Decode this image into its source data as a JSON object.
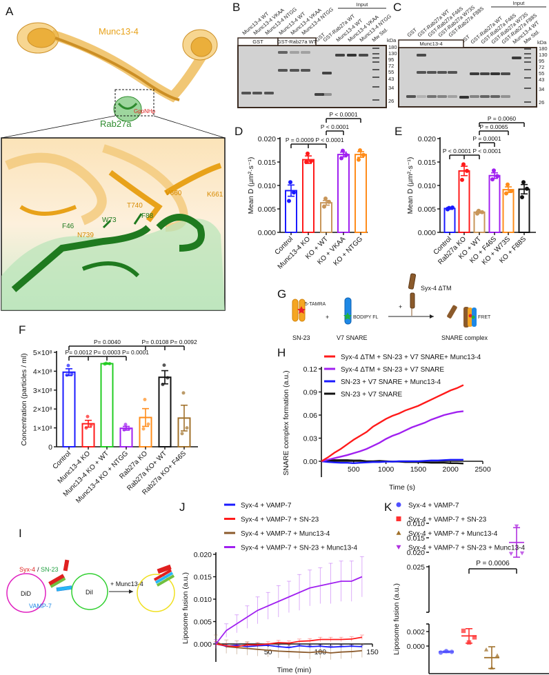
{
  "panel_letters": {
    "a": "A",
    "b": "B",
    "c": "C",
    "d": "D",
    "e": "E",
    "f": "F",
    "g": "G",
    "h": "H",
    "i": "I",
    "j": "J",
    "k": "K"
  },
  "panel_a": {
    "protein_label": "Munc13-4",
    "rab_label": "Rab27a",
    "ligand_label": "GppNHp",
    "residues": [
      "V660",
      "K661",
      "T740",
      "N739",
      "F46",
      "W73",
      "F88"
    ],
    "colors": {
      "munc": "#e8a21a",
      "rab": "#2e8b2e",
      "ligand": "#e02020"
    }
  },
  "panel_b": {
    "lanes": [
      "Munc13-4 WT",
      "Munc13-4 VKAA",
      "Munc13-4 NTGG",
      "Munc13-4 WT",
      "Munc13-4 VKAA",
      "Munc13-4 NTGG",
      "GST",
      "GST-Rab27a WT",
      "Munc13-4 WT",
      "Munc13-4 VKAA",
      "Munc13-4 NTGG",
      "Mw Std."
    ],
    "boxes": [
      "GST",
      "GST-Rab27a WT"
    ],
    "input_label": "Input",
    "kda_label": "kDa",
    "markers": [
      "180",
      "130",
      "95",
      "72",
      "55",
      "43",
      "34",
      "26"
    ]
  },
  "panel_c": {
    "lanes": [
      "GST",
      "GST-Rab27a WT",
      "GST-Rab27a F46S",
      "GST-Rab27a W73S",
      "GST-Rab27a F88S",
      "GST",
      "GST-Rab27a WT",
      "GST-Rab27a F46S",
      "GST-Rab27a W73S",
      "GST-Rab27a F88S",
      "Munc13-4 WT",
      "Mw Std."
    ],
    "box": "Munc13-4",
    "input_label": "Input",
    "kda_label": "kDa",
    "markers": [
      "180",
      "130",
      "95",
      "72",
      "55",
      "43",
      "34",
      "26"
    ]
  },
  "panel_g": {
    "sn23": "SN-23",
    "dye1": "5-TAMRA",
    "v7": "V7 SNARE",
    "dye2": "BODIPY FL",
    "syx": "Syx-4 ΔTM",
    "plus": "+",
    "product": "SNARE complex",
    "fret": "FRET"
  },
  "panel_i": {
    "syx": "Syx-4",
    "slash": "/",
    "sn23": "SN-23",
    "vamp": "VAMP-7",
    "did": "DiD",
    "dii": "DiI",
    "munc": "+ Munc13-4"
  },
  "chart_data": [
    {
      "id": "D",
      "type": "bar",
      "ylabel": "Mean D (µm²·s⁻¹)",
      "ylim": [
        0,
        0.02
      ],
      "yticks": [
        0,
        0.005,
        0.01,
        0.015,
        0.02
      ],
      "ytick_labels": [
        "0.000",
        "0.005",
        "0.010",
        "0.015",
        "0.020"
      ],
      "categories": [
        "Control",
        "Munc13-4 KO",
        "KO + WT",
        "KO + VKAA",
        "KO + NTGG"
      ],
      "colors": [
        "#1a1aff",
        "#ff1a1a",
        "#c8965a",
        "#a020f0",
        "#ff8c1a"
      ],
      "values": [
        0.0089,
        0.0155,
        0.0063,
        0.0166,
        0.0166
      ],
      "errors": [
        0.0012,
        0.0008,
        0.0005,
        0.0005,
        0.0006
      ],
      "points": [
        [
          0.0107,
          0.0085,
          0.0067
        ],
        [
          0.0168,
          0.0152,
          0.015
        ],
        [
          0.0072,
          0.0065,
          0.0055
        ],
        [
          0.0174,
          0.0165,
          0.0158
        ],
        [
          0.0175,
          0.0165,
          0.0155
        ]
      ],
      "comparisons": [
        {
          "groups": [
            0,
            1,
            2
          ],
          "labels": [
            "P = 0.0009",
            "P < 0.0001"
          ]
        },
        {
          "groups": [
            2,
            3
          ],
          "labels": [
            "P < 0.0001"
          ]
        },
        {
          "groups": [
            2,
            4
          ],
          "labels": [
            "P < 0.0001"
          ]
        }
      ]
    },
    {
      "id": "E",
      "type": "bar",
      "ylabel": "Mean D (µm²·s⁻¹)",
      "ylim": [
        0,
        0.02
      ],
      "yticks": [
        0,
        0.005,
        0.01,
        0.015,
        0.02
      ],
      "ytick_labels": [
        "0.000",
        "0.005",
        "0.010",
        "0.015",
        "0.020"
      ],
      "categories": [
        "Control",
        "Rab27a KO",
        "KO + WT",
        "KO + F46S",
        "KO + W73S",
        "KO + F88S"
      ],
      "colors": [
        "#1a1aff",
        "#ff1a1a",
        "#c8965a",
        "#a020f0",
        "#ff8c1a",
        "#111111"
      ],
      "values": [
        0.0051,
        0.0131,
        0.0043,
        0.0121,
        0.0091,
        0.0092
      ],
      "errors": [
        0.0002,
        0.001,
        0.0002,
        0.0006,
        0.0006,
        0.001
      ],
      "points": [
        [
          0.0052,
          0.0053,
          0.0049
        ],
        [
          0.0145,
          0.0131,
          0.0112
        ],
        [
          0.0046,
          0.0043,
          0.004
        ],
        [
          0.0132,
          0.012,
          0.0113
        ],
        [
          0.0102,
          0.0088,
          0.0083
        ],
        [
          0.0107,
          0.0093,
          0.0075
        ]
      ],
      "comparisons": [
        {
          "groups": [
            0,
            1,
            2
          ],
          "labels": [
            "P < 0.0001",
            "P < 0.0001"
          ]
        },
        {
          "groups": [
            2,
            3
          ],
          "labels": [
            "P = 0.0001"
          ]
        },
        {
          "groups": [
            2,
            4
          ],
          "labels": [
            "P = 0.0065"
          ]
        },
        {
          "groups": [
            2,
            5
          ],
          "labels": [
            "P = 0.0060"
          ]
        }
      ]
    },
    {
      "id": "F",
      "type": "bar",
      "ylabel": "Concentration (particles / ml)",
      "ylim": [
        0,
        500000000
      ],
      "yticks": [
        0,
        100000000,
        200000000,
        300000000,
        400000000,
        500000000
      ],
      "ytick_labels": [
        "0",
        "1×10⁸",
        "2×10⁸",
        "3×10⁸",
        "4×10⁸",
        "5×10⁸"
      ],
      "categories": [
        "Control",
        "Munc13-4 KO",
        "Munc13-4 KO + WT",
        "Munc13-4 KO + NTGG",
        "Rab27a KO",
        "Rab27a KO+ WT",
        "Rab27a KO+ F46S"
      ],
      "colors": [
        "#1a1aff",
        "#ff1a1a",
        "#22cc22",
        "#a020f0",
        "#ff8c1a",
        "#111111",
        "#a0702a"
      ],
      "values": [
        395000000,
        122000000,
        440000000,
        98000000,
        155000000,
        368000000,
        152000000
      ],
      "errors": [
        18000000,
        18000000,
        3000000,
        10000000,
        47000000,
        35000000,
        68000000
      ],
      "points": [
        [
          430000000,
          385000000,
          380000000
        ],
        [
          160000000,
          115000000,
          100000000
        ],
        [
          442000000,
          440000000,
          438000000
        ],
        [
          118000000,
          95000000,
          90000000
        ],
        [
          250000000,
          120000000,
          95000000
        ],
        [
          432000000,
          365000000,
          330000000
        ],
        [
          285000000,
          100000000,
          70000000
        ]
      ],
      "comparisons": [
        {
          "groups": [
            0,
            1,
            2,
            3
          ],
          "labels": [
            "P= 0.0012",
            "P= 0.0003",
            "P= 0.0001"
          ]
        },
        {
          "groups": [
            0,
            4,
            5,
            6
          ],
          "labels": [
            "P= 0.0040",
            "P= 0.0108",
            "P= 0.0092"
          ]
        }
      ]
    },
    {
      "id": "H",
      "type": "line",
      "xlabel": "Time (s)",
      "ylabel": "SNARE complex formation (a.u.)",
      "xlim": [
        0,
        2500
      ],
      "ylim": [
        0,
        0.12
      ],
      "xticks": [
        500,
        1000,
        1500,
        2000,
        2500
      ],
      "xtick_labels": [
        "500",
        "1000",
        "1500",
        "2000",
        "2500"
      ],
      "yticks": [
        0,
        0.03,
        0.06,
        0.09,
        0.12
      ],
      "ytick_labels": [
        "0.00",
        "0.03",
        "0.06",
        "0.09",
        "0.12"
      ],
      "x": [
        0,
        100,
        200,
        300,
        400,
        500,
        600,
        700,
        800,
        900,
        1000,
        1100,
        1200,
        1300,
        1400,
        1500,
        1600,
        1700,
        1800,
        1900,
        2000,
        2100,
        2200
      ],
      "series": [
        {
          "name": "Syx-4 ΔTM + SN-23 + V7 SNARE+ Munc13-4",
          "color": "#ff1a1a",
          "values": [
            0,
            0.005,
            0.011,
            0.016,
            0.022,
            0.028,
            0.033,
            0.038,
            0.045,
            0.05,
            0.055,
            0.059,
            0.062,
            0.066,
            0.069,
            0.072,
            0.076,
            0.08,
            0.084,
            0.088,
            0.092,
            0.095,
            0.099
          ]
        },
        {
          "name": "Syx-4 ΔTM + SN-23 + V7 SNARE",
          "color": "#a020f0",
          "values": [
            0,
            0.002,
            0.004,
            0.006,
            0.008,
            0.0105,
            0.013,
            0.016,
            0.02,
            0.024,
            0.029,
            0.033,
            0.036,
            0.04,
            0.044,
            0.047,
            0.05,
            0.054,
            0.057,
            0.06,
            0.062,
            0.064,
            0.065
          ]
        },
        {
          "name": "SN-23 + V7 SNARE + Munc13-4",
          "color": "#1a1aff",
          "values": [
            0,
            -0.001,
            -0.0015,
            -0.002,
            -0.002,
            -0.0025,
            -0.002,
            -0.0015,
            -0.001,
            -0.001,
            -0.0005,
            -0.0005,
            0,
            0,
            0,
            0,
            0.0005,
            0.001,
            0.001,
            0.0015,
            0.002,
            0.002,
            0.002
          ]
        },
        {
          "name": "SN-23 + V7 SNARE",
          "color": "#111111",
          "values": [
            0,
            0.001,
            0.0015,
            0.0015,
            0.0015,
            0.001,
            0.001,
            0,
            0,
            0.0005,
            0,
            -0.0005,
            -0.0005,
            -0.001,
            -0.001,
            -0.001,
            -0.0015,
            -0.002,
            -0.002,
            -0.002,
            -0.0025,
            -0.0025,
            -0.003
          ]
        }
      ]
    },
    {
      "id": "J",
      "type": "line",
      "xlabel": "Time (min)",
      "ylabel": "Liposome fusion (a.u.)",
      "xlim": [
        0,
        150
      ],
      "ylim": [
        0,
        0.02
      ],
      "xticks": [
        50,
        100,
        150
      ],
      "xtick_labels": [
        "50",
        "100",
        "150"
      ],
      "yticks": [
        0,
        0.005,
        0.01,
        0.015,
        0.02
      ],
      "ytick_labels": [
        "0.000",
        "0.005",
        "0.010",
        "0.015",
        "0.020"
      ],
      "x": [
        0,
        10,
        20,
        30,
        40,
        50,
        60,
        70,
        80,
        90,
        100,
        110,
        120,
        130,
        140
      ],
      "series": [
        {
          "name": "Syx-4 + VAMP-7",
          "color": "#1a1aff",
          "values": [
            0,
            -0.0005,
            -0.0003,
            -0.0006,
            -0.0004,
            -0.0003,
            -0.0006,
            -0.0008,
            -0.0004,
            -0.0006,
            -0.0005,
            -0.0007,
            -0.0006,
            -0.0005,
            -0.0006
          ],
          "errors": [
            0.0003,
            0.0003,
            0.0003,
            0.0003,
            0.0003,
            0.0003,
            0.0003,
            0.0003,
            0.0003,
            0.0003,
            0.0003,
            0.0003,
            0.0003,
            0.0003,
            0.0003
          ]
        },
        {
          "name": "Syx-4 + VAMP-7 + SN-23",
          "color": "#ff1a1a",
          "values": [
            0,
            -0.0004,
            -0.0006,
            -0.0002,
            -0.0002,
            0,
            0.0003,
            0.0002,
            0.0006,
            0.0007,
            0.001,
            0.001,
            0.001,
            0.0011,
            0.0015
          ],
          "errors": [
            0.0005,
            0.0005,
            0.0005,
            0.0005,
            0.0005,
            0.0005,
            0.0005,
            0.0005,
            0.0005,
            0.0005,
            0.0005,
            0.0005,
            0.0005,
            0.0005,
            0.0005
          ]
        },
        {
          "name": "Syx-4 + VAMP-7 + Munc13-4",
          "color": "#8b5a2b",
          "values": [
            0.0005,
            -0.0006,
            -0.0008,
            -0.001,
            -0.0012,
            -0.0014,
            -0.0016,
            -0.0017,
            -0.0018,
            -0.0019,
            -0.0017,
            -0.002,
            -0.0018,
            -0.0017,
            -0.0015
          ],
          "errors": [
            0.0015,
            0.0015,
            0.0015,
            0.0015,
            0.0015,
            0.0015,
            0.0015,
            0.0015,
            0.0015,
            0.0015,
            0.0015,
            0.0015,
            0.0015,
            0.0015,
            0.0015
          ]
        },
        {
          "name": "Syx-4 + VAMP-7 + SN-23 + Munc13-4",
          "color": "#a020f0",
          "values": [
            0,
            0.003,
            0.0045,
            0.006,
            0.0075,
            0.0085,
            0.0095,
            0.0105,
            0.0115,
            0.0125,
            0.013,
            0.0135,
            0.014,
            0.014,
            0.015
          ],
          "errors": [
            0.001,
            0.0015,
            0.002,
            0.0025,
            0.003,
            0.003,
            0.0035,
            0.0035,
            0.004,
            0.004,
            0.004,
            0.0045,
            0.0045,
            0.0045,
            0.0045
          ]
        }
      ]
    },
    {
      "id": "K",
      "type": "scatter",
      "ylabel": "Liposome fusion (a.u.)",
      "broken_axis": true,
      "upper_yticks": [
        0.01,
        0.015,
        0.02,
        0.025
      ],
      "upper_ytick_labels": [
        "0.010",
        "0.015",
        "0.020",
        "0.025"
      ],
      "lower_yticks": [
        0,
        0.002
      ],
      "lower_ytick_labels": [
        "0.000",
        "0.002"
      ],
      "series": [
        {
          "name": "Syx-4 + VAMP-7",
          "color": "#5050ff",
          "marker": "circle",
          "points": [
            -0.0009,
            -0.0008,
            -0.0007
          ],
          "mean": -0.0008,
          "sd": 0.0001
        },
        {
          "name": "Syx-4 + VAMP-7 + SN-23",
          "color": "#ff3030",
          "marker": "square",
          "points": [
            0.0021,
            0.0012,
            0.0005
          ],
          "mean": 0.0014,
          "sd": 0.001
        },
        {
          "name": "Syx-4 + VAMP-7 + Munc13-4",
          "color": "#a0702a",
          "marker": "triangle-up",
          "points": [
            -0.0005,
            -0.0013,
            -0.003
          ],
          "mean": -0.0016,
          "sd": 0.0015
        },
        {
          "name": "Syx-4 + VAMP-7 + SN-23 + Munc13-4",
          "color": "#b030e0",
          "marker": "triangle-down",
          "points": [
            0.0205,
            0.0203,
            0.011
          ],
          "mean": 0.0166,
          "sd": 0.0051
        }
      ],
      "comparisons": [
        {
          "groups": [
            1,
            3
          ],
          "labels": [
            "P = 0.0006"
          ]
        }
      ]
    }
  ]
}
